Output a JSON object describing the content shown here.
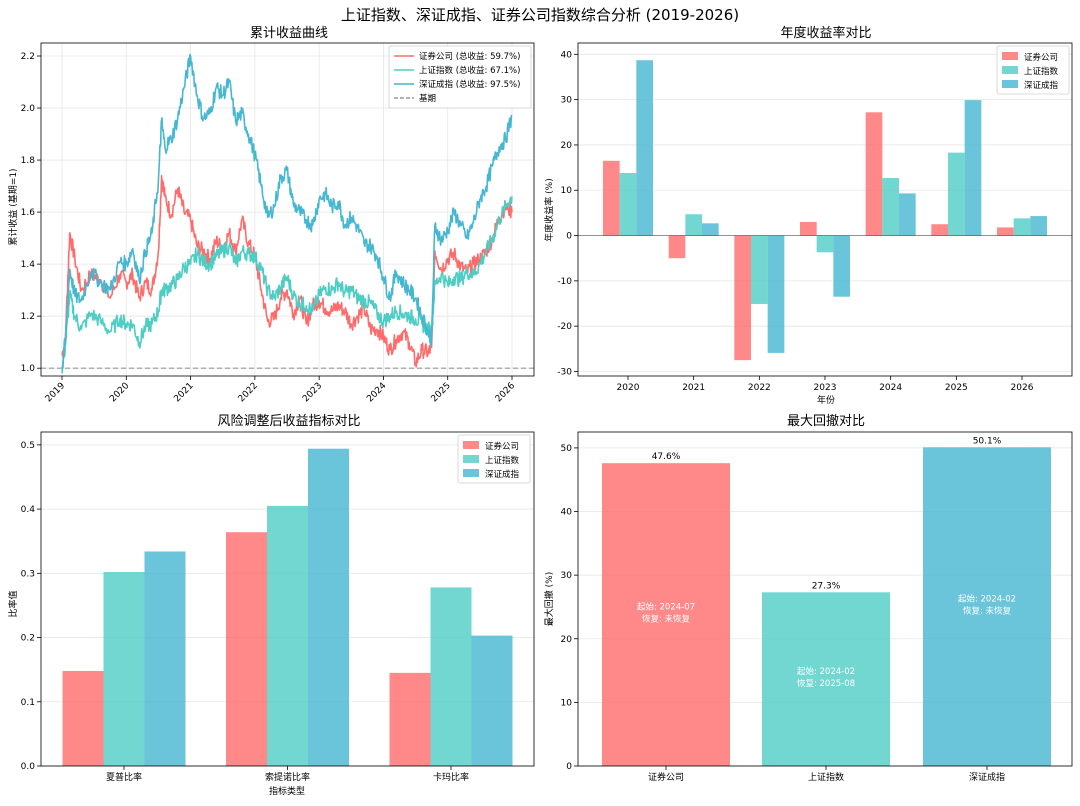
{
  "suptitle": "上证指数、深证成指、证券公司指数综合分析 (2019-2026)",
  "colors": {
    "sec": "#ff6b6b",
    "sh": "#4ecdc4",
    "sz": "#45b7d1",
    "baseline": "#999999"
  },
  "chart_data": [
    {
      "type": "line",
      "title": "累计收益曲线",
      "xlabel": "",
      "ylabel": "累计收益 (基期=1)",
      "x_ticks": [
        "2019",
        "2020",
        "2021",
        "2022",
        "2023",
        "2024",
        "2025",
        "2026"
      ],
      "xlim": [
        2019,
        2026
      ],
      "ylim": [
        1.0,
        2.2
      ],
      "y_ticks": [
        "1.0",
        "1.2",
        "1.4",
        "1.6",
        "1.8",
        "2.0",
        "2.2"
      ],
      "grid": true,
      "legend_position": "top-right",
      "baseline": {
        "name": "基期",
        "value": 1.0
      },
      "series": [
        {
          "name": "证券公司 (总收益: 59.7%)",
          "key": "sec",
          "x": [
            2019.0,
            2019.05,
            2019.12,
            2019.2,
            2019.3,
            2019.45,
            2019.6,
            2019.75,
            2019.9,
            2020.0,
            2020.1,
            2020.2,
            2020.3,
            2020.4,
            2020.5,
            2020.55,
            2020.6,
            2020.7,
            2020.8,
            2020.9,
            2021.0,
            2021.1,
            2021.2,
            2021.3,
            2021.4,
            2021.5,
            2021.6,
            2021.7,
            2021.8,
            2021.9,
            2022.0,
            2022.1,
            2022.2,
            2022.3,
            2022.4,
            2022.5,
            2022.6,
            2022.7,
            2022.8,
            2022.9,
            2023.0,
            2023.1,
            2023.2,
            2023.3,
            2023.4,
            2023.5,
            2023.6,
            2023.7,
            2023.8,
            2023.9,
            2024.0,
            2024.1,
            2024.2,
            2024.3,
            2024.4,
            2024.5,
            2024.6,
            2024.7,
            2024.75,
            2024.8,
            2024.9,
            2025.0,
            2025.1,
            2025.2,
            2025.3,
            2025.4,
            2025.5,
            2025.6,
            2025.7,
            2025.8,
            2025.9,
            2026.0
          ],
          "y": [
            1.05,
            1.1,
            1.52,
            1.42,
            1.3,
            1.36,
            1.34,
            1.27,
            1.36,
            1.33,
            1.36,
            1.27,
            1.33,
            1.3,
            1.45,
            1.74,
            1.66,
            1.59,
            1.69,
            1.6,
            1.57,
            1.47,
            1.45,
            1.42,
            1.49,
            1.46,
            1.52,
            1.45,
            1.57,
            1.48,
            1.43,
            1.3,
            1.18,
            1.19,
            1.27,
            1.3,
            1.21,
            1.27,
            1.17,
            1.24,
            1.26,
            1.23,
            1.22,
            1.24,
            1.22,
            1.17,
            1.2,
            1.23,
            1.15,
            1.15,
            1.12,
            1.07,
            1.11,
            1.14,
            1.1,
            1.02,
            1.07,
            1.06,
            1.08,
            1.45,
            1.38,
            1.42,
            1.44,
            1.39,
            1.37,
            1.4,
            1.42,
            1.45,
            1.5,
            1.58,
            1.62,
            1.6
          ]
        },
        {
          "name": "上证指数 (总收益: 67.1%)",
          "key": "sh",
          "x": [
            2019.0,
            2019.05,
            2019.12,
            2019.2,
            2019.3,
            2019.45,
            2019.6,
            2019.75,
            2019.9,
            2020.0,
            2020.1,
            2020.2,
            2020.3,
            2020.4,
            2020.5,
            2020.55,
            2020.6,
            2020.7,
            2020.8,
            2020.9,
            2021.0,
            2021.1,
            2021.2,
            2021.3,
            2021.4,
            2021.5,
            2021.6,
            2021.7,
            2021.8,
            2021.9,
            2022.0,
            2022.1,
            2022.2,
            2022.3,
            2022.4,
            2022.5,
            2022.6,
            2022.7,
            2022.8,
            2022.9,
            2023.0,
            2023.1,
            2023.2,
            2023.3,
            2023.4,
            2023.5,
            2023.6,
            2023.7,
            2023.8,
            2023.9,
            2024.0,
            2024.1,
            2024.2,
            2024.3,
            2024.4,
            2024.5,
            2024.6,
            2024.7,
            2024.75,
            2024.8,
            2024.9,
            2025.0,
            2025.1,
            2025.2,
            2025.3,
            2025.4,
            2025.5,
            2025.6,
            2025.7,
            2025.8,
            2025.9,
            2026.0
          ],
          "y": [
            1.0,
            1.08,
            1.28,
            1.2,
            1.15,
            1.21,
            1.18,
            1.14,
            1.19,
            1.17,
            1.17,
            1.1,
            1.16,
            1.17,
            1.22,
            1.3,
            1.3,
            1.32,
            1.34,
            1.39,
            1.4,
            1.44,
            1.41,
            1.4,
            1.43,
            1.45,
            1.47,
            1.4,
            1.45,
            1.44,
            1.43,
            1.38,
            1.3,
            1.27,
            1.31,
            1.35,
            1.28,
            1.25,
            1.24,
            1.22,
            1.28,
            1.31,
            1.3,
            1.33,
            1.29,
            1.3,
            1.27,
            1.26,
            1.25,
            1.21,
            1.18,
            1.2,
            1.22,
            1.21,
            1.2,
            1.19,
            1.17,
            1.15,
            1.14,
            1.32,
            1.36,
            1.32,
            1.35,
            1.34,
            1.37,
            1.36,
            1.4,
            1.45,
            1.5,
            1.57,
            1.62,
            1.66
          ]
        },
        {
          "name": "深证成指 (总收益: 97.5%)",
          "key": "sz",
          "x": [
            2019.0,
            2019.05,
            2019.12,
            2019.2,
            2019.3,
            2019.45,
            2019.6,
            2019.75,
            2019.9,
            2020.0,
            2020.1,
            2020.2,
            2020.3,
            2020.4,
            2020.5,
            2020.55,
            2020.6,
            2020.7,
            2020.8,
            2020.9,
            2021.0,
            2021.1,
            2021.2,
            2021.3,
            2021.4,
            2021.5,
            2021.6,
            2021.7,
            2021.8,
            2021.9,
            2022.0,
            2022.1,
            2022.2,
            2022.3,
            2022.4,
            2022.5,
            2022.6,
            2022.7,
            2022.8,
            2022.9,
            2023.0,
            2023.1,
            2023.2,
            2023.3,
            2023.4,
            2023.5,
            2023.6,
            2023.7,
            2023.8,
            2023.9,
            2024.0,
            2024.1,
            2024.2,
            2024.3,
            2024.4,
            2024.5,
            2024.6,
            2024.7,
            2024.75,
            2024.8,
            2024.9,
            2025.0,
            2025.1,
            2025.2,
            2025.3,
            2025.4,
            2025.5,
            2025.6,
            2025.7,
            2025.8,
            2025.9,
            2026.0
          ],
          "y": [
            1.0,
            1.1,
            1.38,
            1.28,
            1.26,
            1.37,
            1.33,
            1.3,
            1.41,
            1.4,
            1.46,
            1.34,
            1.45,
            1.52,
            1.72,
            1.95,
            1.85,
            1.88,
            1.96,
            2.08,
            2.2,
            2.05,
            1.96,
            1.98,
            2.08,
            2.05,
            2.1,
            1.95,
            1.98,
            1.9,
            1.82,
            1.7,
            1.58,
            1.62,
            1.73,
            1.76,
            1.63,
            1.6,
            1.57,
            1.55,
            1.65,
            1.67,
            1.62,
            1.64,
            1.55,
            1.58,
            1.54,
            1.48,
            1.47,
            1.43,
            1.35,
            1.27,
            1.37,
            1.33,
            1.3,
            1.27,
            1.2,
            1.14,
            1.11,
            1.55,
            1.49,
            1.53,
            1.6,
            1.55,
            1.5,
            1.56,
            1.65,
            1.7,
            1.78,
            1.85,
            1.88,
            1.97
          ]
        }
      ]
    },
    {
      "type": "bar",
      "title": "年度收益率对比",
      "xlabel": "年份",
      "ylabel": "年度收益率 (%)",
      "categories": [
        "2020",
        "2021",
        "2022",
        "2023",
        "2024",
        "2025",
        "2026"
      ],
      "ylim": [
        -30,
        42
      ],
      "y_ticks": [
        "-30",
        "-20",
        "-10",
        "0",
        "10",
        "20",
        "30",
        "40"
      ],
      "grid": true,
      "legend_position": "top-right",
      "series": [
        {
          "name": "证券公司",
          "key": "sec",
          "values": [
            16.5,
            -5.0,
            -27.5,
            3.0,
            27.2,
            2.5,
            1.8
          ]
        },
        {
          "name": "上证指数",
          "key": "sh",
          "values": [
            13.8,
            4.7,
            -15.1,
            -3.7,
            12.7,
            18.3,
            3.8
          ]
        },
        {
          "name": "深证成指",
          "key": "sz",
          "values": [
            38.7,
            2.7,
            -25.9,
            -13.5,
            9.3,
            29.9,
            4.3
          ]
        }
      ]
    },
    {
      "type": "bar",
      "title": "风险调整后收益指标对比",
      "xlabel": "指标类型",
      "ylabel": "比率值",
      "categories": [
        "夏普比率",
        "索提诺比率",
        "卡玛比率"
      ],
      "ylim": [
        0,
        0.52
      ],
      "y_ticks": [
        "0.0",
        "0.1",
        "0.2",
        "0.3",
        "0.4",
        "0.5"
      ],
      "grid": true,
      "legend_position": "top-right",
      "series": [
        {
          "name": "证券公司",
          "key": "sec",
          "values": [
            0.148,
            0.364,
            0.145
          ]
        },
        {
          "name": "上证指数",
          "key": "sh",
          "values": [
            0.302,
            0.405,
            0.278
          ]
        },
        {
          "name": "深证成指",
          "key": "sz",
          "values": [
            0.334,
            0.494,
            0.203
          ]
        }
      ]
    },
    {
      "type": "bar",
      "title": "最大回撤对比",
      "xlabel": "",
      "ylabel": "最大回撤 (%)",
      "categories": [
        "证券公司",
        "上证指数",
        "深证成指"
      ],
      "ylim": [
        0,
        52.5
      ],
      "y_ticks": [
        "0",
        "10",
        "20",
        "30",
        "40",
        "50"
      ],
      "grid": true,
      "values": [
        47.6,
        27.3,
        50.1
      ],
      "keys": [
        "sec",
        "sh",
        "sz"
      ],
      "data_labels": [
        "47.6%",
        "27.3%",
        "50.1%"
      ],
      "annotations": [
        {
          "start": "起始: 2024-07",
          "recover": "恢复: 未恢复"
        },
        {
          "start": "起始: 2024-02",
          "recover": "恢复: 2025-08"
        },
        {
          "start": "起始: 2024-02",
          "recover": "恢复: 未恢复"
        }
      ]
    }
  ]
}
